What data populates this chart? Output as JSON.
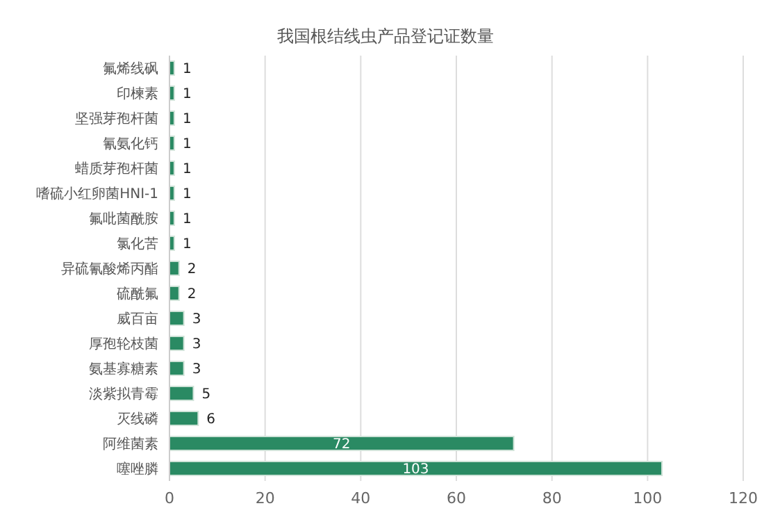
{
  "chart_data": {
    "type": "bar",
    "orientation": "horizontal",
    "title": "我国根结线虫产品登记证数量",
    "categories": [
      "氟烯线砜",
      "印楝素",
      "坚强芽孢杆菌",
      "氰氨化钙",
      "蜡质芽孢杆菌",
      "嗜硫小红卵菌HNI-1",
      "氟吡菌酰胺",
      "氯化苦",
      "异硫氰酸烯丙酯",
      "硫酰氟",
      "威百亩",
      "厚孢轮枝菌",
      "氨基寡糖素",
      "淡紫拟青霉",
      "灭线磷",
      "阿维菌素",
      "噻唑膦"
    ],
    "values": [
      1,
      1,
      1,
      1,
      1,
      1,
      1,
      1,
      2,
      2,
      3,
      3,
      3,
      5,
      6,
      72,
      103
    ],
    "color": "#2a8a63",
    "xlim": [
      0,
      120
    ],
    "xticks": [
      0,
      20,
      40,
      60,
      80,
      100,
      120
    ],
    "grid": "x",
    "data_labels": true
  }
}
